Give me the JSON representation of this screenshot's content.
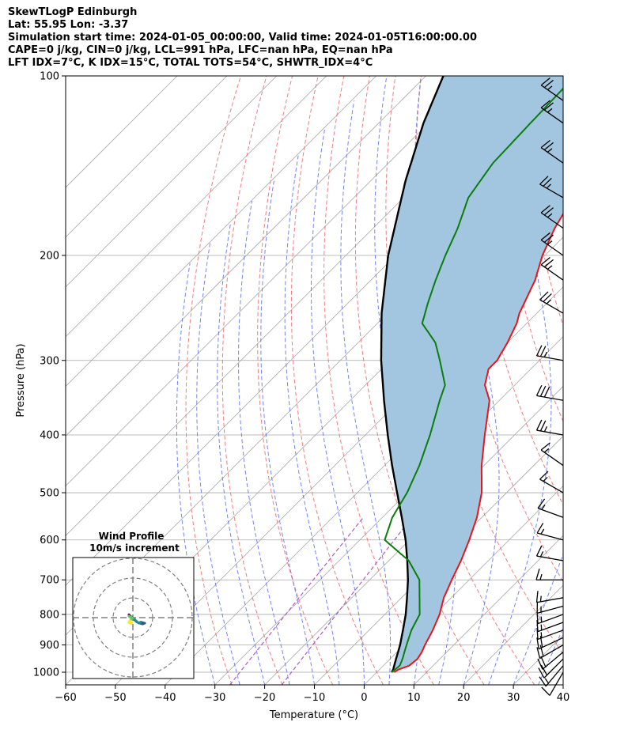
{
  "header": {
    "line1": "SkewTLogP Edinburgh",
    "line2": "Lat: 55.95   Lon: -3.37",
    "line3": "Simulation start time: 2024-01-05_00:00:00, Valid time: 2024-01-05T16:00:00.00",
    "line4": "CAPE=0 j/kg, CIN=0 j/kg, LCL=991 hPa, LFC=nan hPa, EQ=nan hPa",
    "line5": "LFT IDX=7°C, K IDX=15°C, TOTAL TOTS=54°C, SHWTR_IDX=4°C"
  },
  "chart_data": [
    {
      "type": "line",
      "kind": "skew-t-log-p",
      "xlabel": "Temperature (°C)",
      "ylabel": "Pressure (hPa)",
      "xlim": [
        -60,
        40
      ],
      "ylim": [
        1050,
        100
      ],
      "yscale": "log",
      "x_ticks": [
        -60,
        -50,
        -40,
        -30,
        -20,
        -10,
        0,
        10,
        20,
        30,
        40
      ],
      "x_tick_labels": [
        "−60",
        "−50",
        "−40",
        "−30",
        "−20",
        "−10",
        "0",
        "10",
        "20",
        "30",
        "40"
      ],
      "y_ticks": [
        1000,
        900,
        800,
        700,
        600,
        500,
        400,
        300,
        200,
        100
      ],
      "y_tick_labels": [
        "1000",
        "900",
        "800",
        "700",
        "600",
        "500",
        "400",
        "300",
        "200",
        "100"
      ],
      "grid": true,
      "colors": {
        "temperature": "#e8141b",
        "dewpoint": "#0a7d0a",
        "parcel": "#000000",
        "shading": "#a3c6e0",
        "dry_adiabats": "#f07070",
        "moist_adiabats": "#5a6ef2",
        "mixing_ratio": "#b05cc0",
        "isotherms": "#a8a8a8"
      },
      "series": [
        {
          "role": "temperature",
          "points": [
            [
              1000,
              3.5
            ],
            [
              990,
              3.8
            ],
            [
              975,
              5.2
            ],
            [
              950,
              5.5
            ],
            [
              925,
              5.0
            ],
            [
              900,
              4.2
            ],
            [
              850,
              2.8
            ],
            [
              800,
              1.0
            ],
            [
              750,
              -1.5
            ],
            [
              700,
              -3.5
            ],
            [
              650,
              -5.5
            ],
            [
              600,
              -8.0
            ],
            [
              550,
              -11.0
            ],
            [
              500,
              -15.0
            ],
            [
              450,
              -20.5
            ],
            [
              400,
              -26.0
            ],
            [
              350,
              -32.0
            ],
            [
              330,
              -36.0
            ],
            [
              310,
              -38.5
            ],
            [
              300,
              -38.5
            ],
            [
              280,
              -40.0
            ],
            [
              260,
              -42.0
            ],
            [
              250,
              -43.5
            ],
            [
              220,
              -47.0
            ],
            [
              200,
              -50.5
            ],
            [
              180,
              -53.5
            ],
            [
              160,
              -56.0
            ],
            [
              150,
              -56.5
            ],
            [
              140,
              -57.0
            ],
            [
              130,
              -58.5
            ],
            [
              120,
              -60.0
            ],
            [
              110,
              -62.0
            ],
            [
              100,
              -64.0
            ]
          ]
        },
        {
          "role": "dewpoint",
          "points": [
            [
              1000,
              3.0
            ],
            [
              975,
              3.3
            ],
            [
              950,
              2.5
            ],
            [
              925,
              1.5
            ],
            [
              900,
              0.5
            ],
            [
              850,
              -1.5
            ],
            [
              800,
              -3.0
            ],
            [
              770,
              -5.0
            ],
            [
              700,
              -10.0
            ],
            [
              650,
              -16.0
            ],
            [
              600,
              -25.0
            ],
            [
              550,
              -28.0
            ],
            [
              500,
              -30.0
            ],
            [
              450,
              -33.0
            ],
            [
              400,
              -37.0
            ],
            [
              350,
              -42.0
            ],
            [
              330,
              -44.0
            ],
            [
              300,
              -50.0
            ],
            [
              280,
              -54.5
            ],
            [
              260,
              -61.0
            ],
            [
              240,
              -64.0
            ],
            [
              220,
              -67.0
            ],
            [
              200,
              -70.0
            ],
            [
              180,
              -73.0
            ],
            [
              160,
              -77.0
            ],
            [
              140,
              -79.0
            ],
            [
              120,
              -79.5
            ],
            [
              100,
              -80.0
            ]
          ]
        },
        {
          "role": "parcel",
          "points": [
            [
              1000,
              3.0
            ],
            [
              991,
              2.8
            ],
            [
              950,
              1.2
            ],
            [
              900,
              -0.8
            ],
            [
              850,
              -3.2
            ],
            [
              800,
              -5.8
            ],
            [
              750,
              -8.9
            ],
            [
              700,
              -12.3
            ],
            [
              650,
              -16.3
            ],
            [
              600,
              -20.8
            ],
            [
              550,
              -26.1
            ],
            [
              500,
              -32.0
            ],
            [
              450,
              -38.5
            ],
            [
              400,
              -45.5
            ],
            [
              350,
              -53.2
            ],
            [
              300,
              -61.8
            ],
            [
              250,
              -71.2
            ],
            [
              200,
              -81.5
            ],
            [
              150,
              -93.0
            ],
            [
              120,
              -101.0
            ],
            [
              100,
              -106.5
            ]
          ]
        }
      ],
      "wind_barbs": [
        {
          "p": 1000,
          "speed_kt": 10,
          "direction_deg": 210
        },
        {
          "p": 975,
          "speed_kt": 15,
          "direction_deg": 220
        },
        {
          "p": 950,
          "speed_kt": 20,
          "direction_deg": 225
        },
        {
          "p": 925,
          "speed_kt": 20,
          "direction_deg": 230
        },
        {
          "p": 900,
          "speed_kt": 20,
          "direction_deg": 240
        },
        {
          "p": 875,
          "speed_kt": 20,
          "direction_deg": 245
        },
        {
          "p": 850,
          "speed_kt": 15,
          "direction_deg": 250
        },
        {
          "p": 825,
          "speed_kt": 15,
          "direction_deg": 250
        },
        {
          "p": 800,
          "speed_kt": 15,
          "direction_deg": 250
        },
        {
          "p": 775,
          "speed_kt": 15,
          "direction_deg": 255
        },
        {
          "p": 750,
          "speed_kt": 15,
          "direction_deg": 260
        },
        {
          "p": 700,
          "speed_kt": 15,
          "direction_deg": 270
        },
        {
          "p": 650,
          "speed_kt": 15,
          "direction_deg": 280
        },
        {
          "p": 600,
          "speed_kt": 15,
          "direction_deg": 285
        },
        {
          "p": 550,
          "speed_kt": 15,
          "direction_deg": 290
        },
        {
          "p": 500,
          "speed_kt": 15,
          "direction_deg": 300
        },
        {
          "p": 450,
          "speed_kt": 15,
          "direction_deg": 305
        },
        {
          "p": 400,
          "speed_kt": 25,
          "direction_deg": 280
        },
        {
          "p": 350,
          "speed_kt": 30,
          "direction_deg": 280
        },
        {
          "p": 300,
          "speed_kt": 25,
          "direction_deg": 280
        },
        {
          "p": 250,
          "speed_kt": 25,
          "direction_deg": 300
        },
        {
          "p": 220,
          "speed_kt": 25,
          "direction_deg": 305
        },
        {
          "p": 200,
          "speed_kt": 25,
          "direction_deg": 305
        },
        {
          "p": 180,
          "speed_kt": 25,
          "direction_deg": 305
        },
        {
          "p": 160,
          "speed_kt": 25,
          "direction_deg": 300
        },
        {
          "p": 140,
          "speed_kt": 25,
          "direction_deg": 305
        },
        {
          "p": 120,
          "speed_kt": 25,
          "direction_deg": 305
        },
        {
          "p": 110,
          "speed_kt": 25,
          "direction_deg": 305
        }
      ]
    },
    {
      "type": "line",
      "kind": "hodograph",
      "title": "Wind Profile",
      "subtitle": "10m/s increment",
      "ring_step_ms": 10,
      "rings": [
        1,
        2,
        3
      ],
      "grid": true,
      "points_uv_ms": [
        [
          -2.0,
          1.5
        ],
        [
          -1.0,
          0.5
        ],
        [
          0.0,
          -0.3
        ],
        [
          1.0,
          -1.2
        ],
        [
          2.0,
          -2.2
        ],
        [
          3.5,
          -2.8
        ],
        [
          5.0,
          -3.2
        ],
        [
          6.0,
          -2.8
        ],
        [
          4.0,
          -2.2
        ],
        [
          3.0,
          -2.8
        ],
        [
          2.0,
          -2.0
        ],
        [
          1.0,
          -1.0
        ],
        [
          0.0,
          -0.3
        ],
        [
          -1.0,
          0.3
        ],
        [
          -2.0,
          0.8
        ],
        [
          -0.5,
          -0.5
        ],
        [
          -1.5,
          -1.5
        ],
        [
          -2.0,
          -2.5
        ],
        [
          -1.0,
          -3.0
        ],
        [
          -0.5,
          -2.5
        ]
      ],
      "color_scale": [
        "#440154",
        "#3b528b",
        "#21918c",
        "#5ec962",
        "#fde725"
      ]
    }
  ]
}
